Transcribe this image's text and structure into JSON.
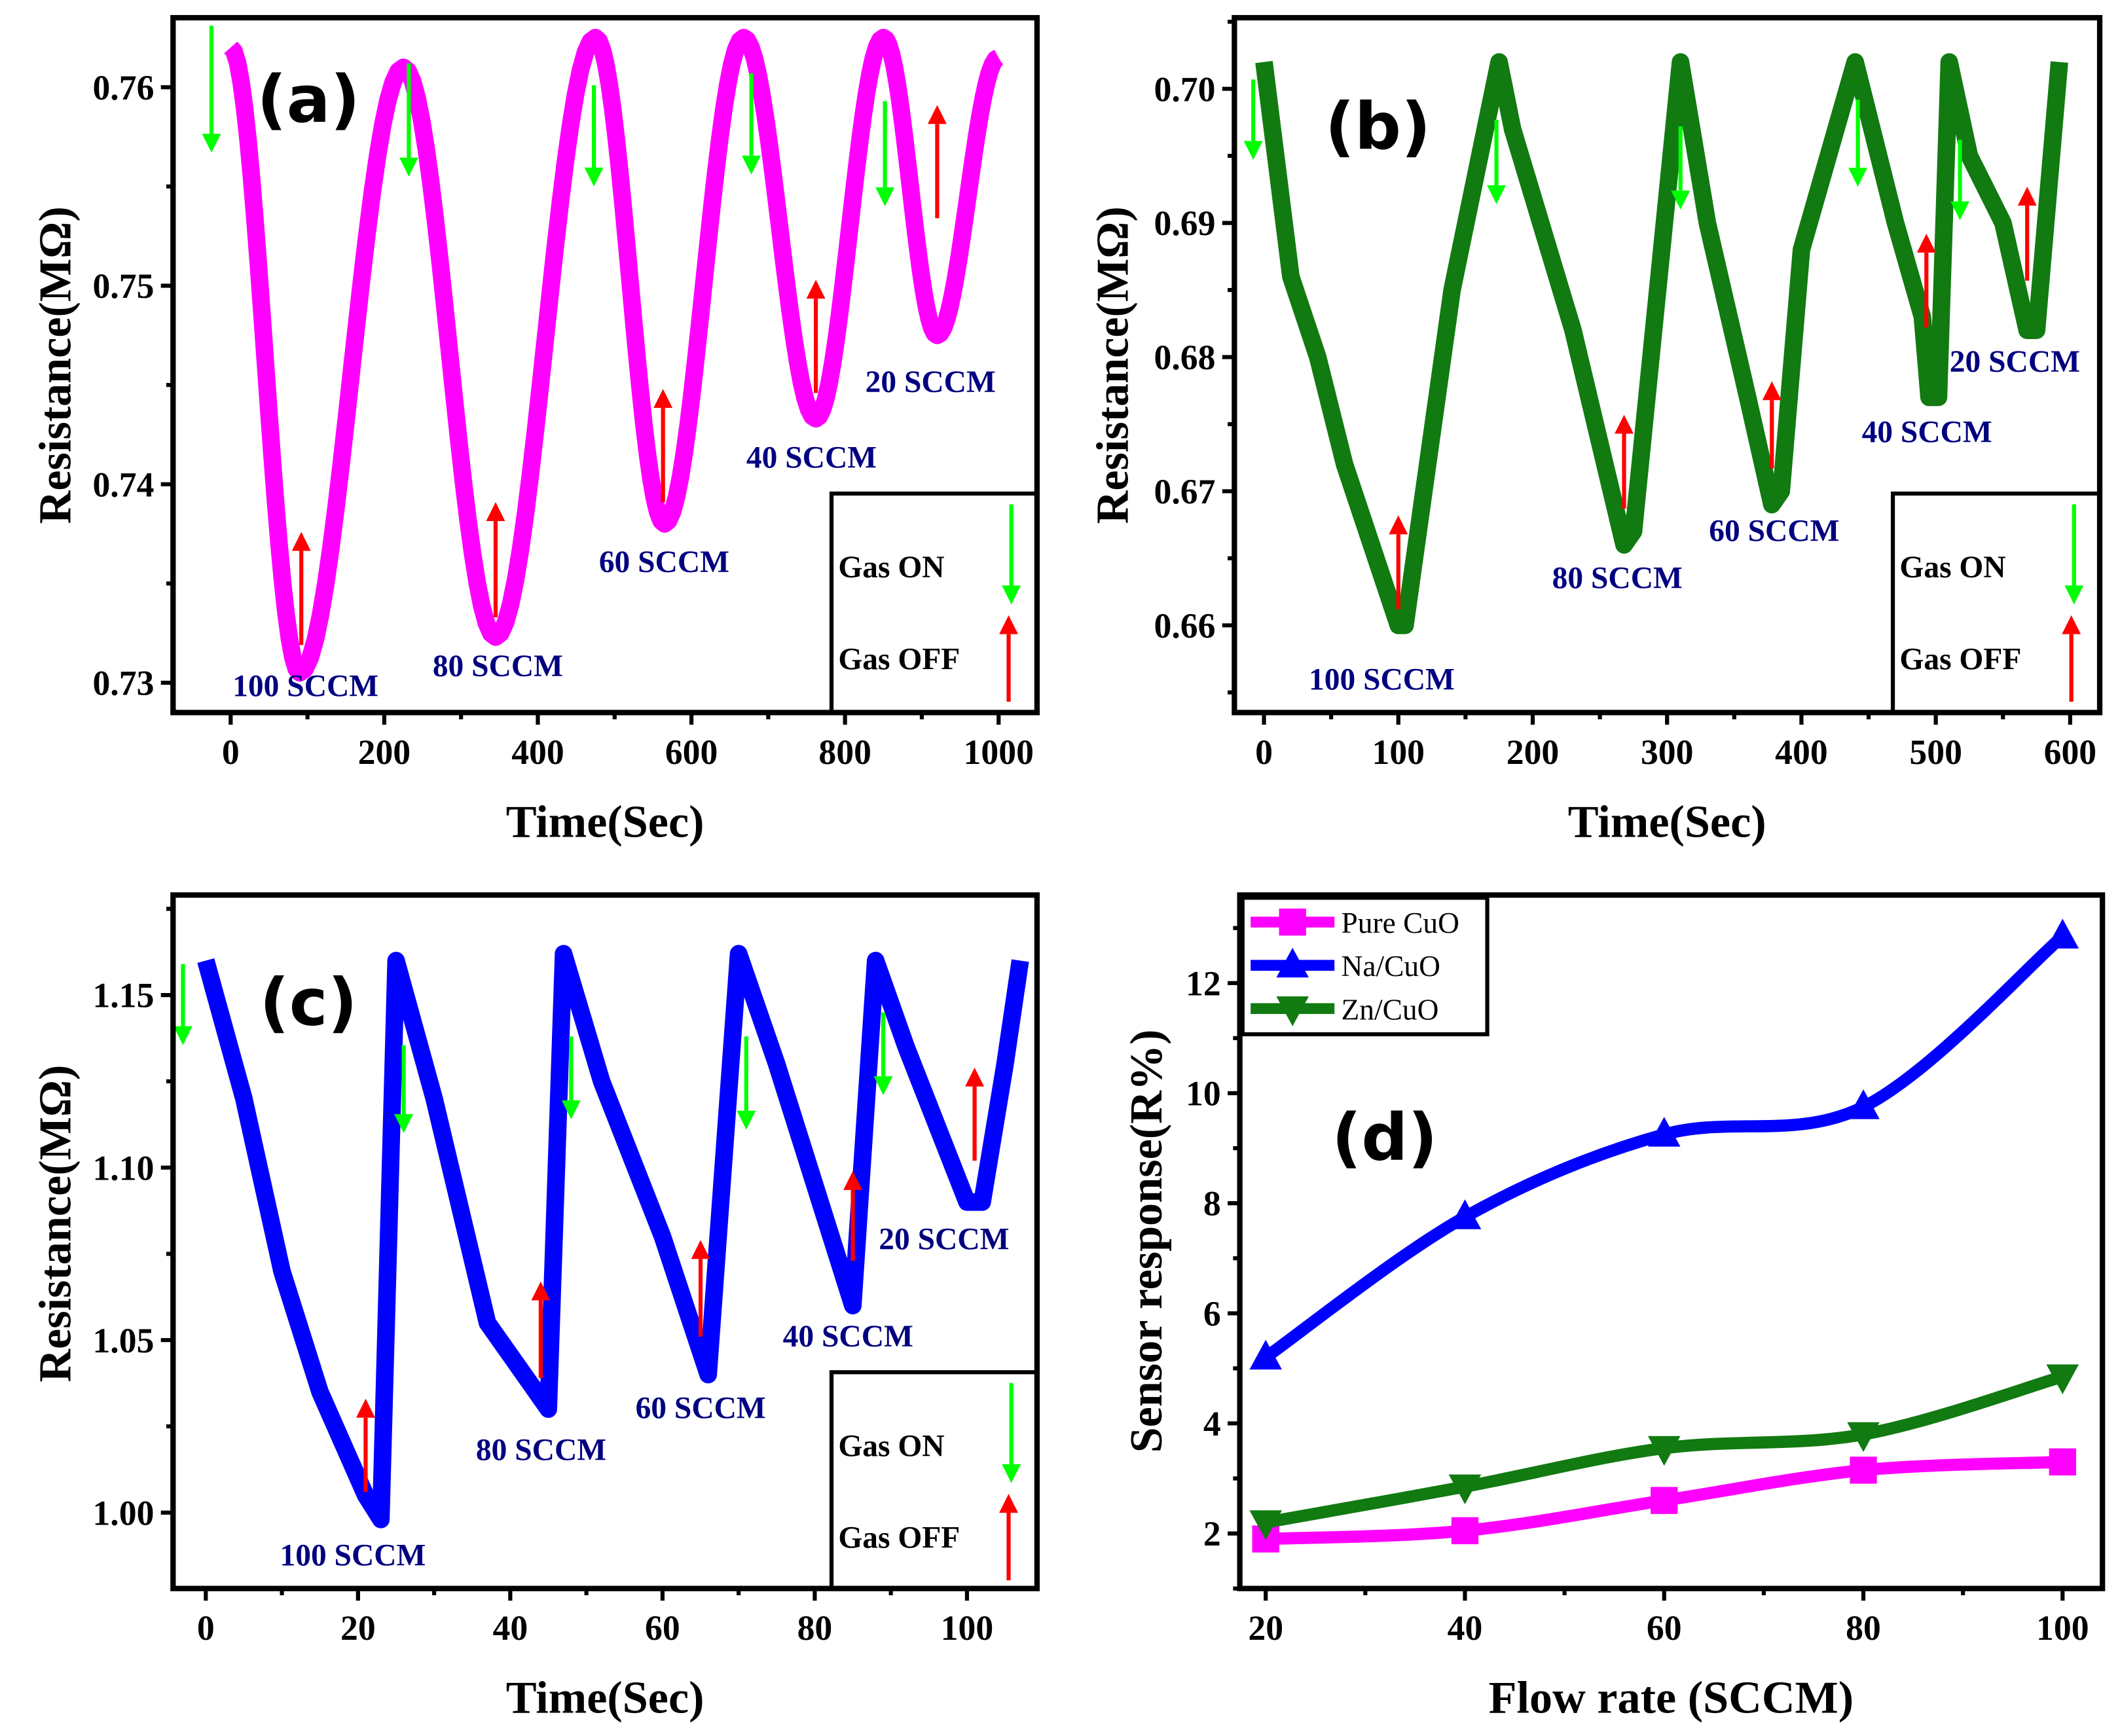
{
  "chart_data": [
    {
      "type": "line",
      "panel_label": "(a)",
      "xlabel": "Time(Sec)",
      "ylabel": "Resistance(MΩ)",
      "xlim": [
        -75,
        1050
      ],
      "ylim": [
        0.7285,
        0.7635
      ],
      "xticks": [
        0,
        200,
        400,
        600,
        800,
        1000
      ],
      "yticks": [
        0.73,
        0.74,
        0.75,
        0.76
      ],
      "ytick_labels": [
        "0.73",
        "0.74",
        "0.75",
        "0.76"
      ],
      "color": "#ff00ff",
      "curve": "cosine",
      "series": [
        {
          "name": "Pure CuO",
          "x": [
            0,
            90,
            225,
            345,
            475,
            565,
            668,
            762,
            850,
            920,
            1000
          ],
          "y": [
            0.762,
            0.7305,
            0.761,
            0.7323,
            0.7625,
            0.738,
            0.7625,
            0.7433,
            0.7625,
            0.7475,
            0.7615
          ]
        }
      ],
      "annotations": [
        "100 SCCM",
        "80 SCCM",
        "60 SCCM",
        "40 SCCM",
        "20 SCCM"
      ],
      "gas_on_arrows": [
        [
          -25,
          0.7631,
          0.7567
        ],
        [
          232,
          0.7612,
          0.7555
        ],
        [
          473,
          0.7601,
          0.755
        ],
        [
          678,
          0.7607,
          0.7556
        ],
        [
          852,
          0.7593,
          0.754
        ]
      ],
      "gas_off_arrows": [
        [
          92,
          0.7319,
          0.7376
        ],
        [
          345,
          0.7333,
          0.7391
        ],
        [
          563,
          0.7391,
          0.7448
        ],
        [
          762,
          0.7446,
          0.7503
        ],
        [
          920,
          0.7534,
          0.7591
        ]
      ],
      "legend": [
        "Gas ON",
        "Gas OFF"
      ]
    },
    {
      "type": "line",
      "panel_label": "(b)",
      "xlabel": "Time(Sec)",
      "ylabel": "Resistance(MΩ)",
      "xlim": [
        -22,
        622
      ],
      "ylim": [
        0.6535,
        0.7053
      ],
      "xticks": [
        0,
        100,
        200,
        300,
        400,
        500,
        600
      ],
      "yticks": [
        0.66,
        0.67,
        0.68,
        0.69,
        0.7
      ],
      "ytick_labels": [
        "0.66",
        "0.67",
        "0.68",
        "0.69",
        "0.70"
      ],
      "color": "#117a11",
      "curve": "linear",
      "series": [
        {
          "name": "Zn/CuO",
          "x": [
            0,
            20,
            40,
            60,
            100,
            105,
            140,
            175,
            185,
            230,
            268,
            275,
            310,
            330,
            360,
            378,
            385,
            400,
            440,
            470,
            490,
            495,
            502,
            510,
            525,
            550,
            568,
            575,
            592
          ],
          "y": [
            0.702,
            0.686,
            0.68,
            0.672,
            0.66,
            0.66,
            0.685,
            0.702,
            0.697,
            0.682,
            0.666,
            0.667,
            0.702,
            0.69,
            0.677,
            0.669,
            0.67,
            0.688,
            0.702,
            0.69,
            0.683,
            0.677,
            0.677,
            0.702,
            0.695,
            0.69,
            0.682,
            0.682,
            0.702
          ]
        }
      ],
      "annotations": [
        "100 SCCM",
        "80 SCCM",
        "60 SCCM",
        "40 SCCM",
        "20 SCCM"
      ],
      "gas_on_arrows": [
        [
          -8,
          0.7007,
          0.6947
        ],
        [
          173,
          0.6977,
          0.6914
        ],
        [
          310,
          0.6972,
          0.691
        ],
        [
          442,
          0.6992,
          0.6927
        ],
        [
          518,
          0.6962,
          0.6902
        ]
      ],
      "gas_off_arrows": [
        [
          100,
          0.6612,
          0.6682
        ],
        [
          268,
          0.6687,
          0.6757
        ],
        [
          378,
          0.6717,
          0.6782
        ],
        [
          493,
          0.6822,
          0.6892
        ],
        [
          568,
          0.6857,
          0.6927
        ]
      ],
      "legend": [
        "Gas ON",
        "Gas OFF"
      ]
    },
    {
      "type": "line",
      "panel_label": "(c)",
      "xlabel": "Time(Sec)",
      "ylabel": "Resistance(MΩ)",
      "xlim": [
        -4.3,
        109.2
      ],
      "ylim": [
        0.978,
        1.179
      ],
      "xticks": [
        0,
        20,
        40,
        60,
        80,
        100
      ],
      "yticks": [
        1.0,
        1.05,
        1.1,
        1.15
      ],
      "ytick_labels": [
        "1.00",
        "1.05",
        "1.10",
        "1.15"
      ],
      "color": "#0000ff",
      "curve": "linear",
      "series": [
        {
          "name": "Na/CuO",
          "x": [
            0,
            5,
            10,
            15,
            21,
            23,
            25,
            30,
            37,
            45,
            47,
            52,
            60,
            66,
            70,
            75,
            85,
            88,
            92,
            100,
            102,
            105,
            107
          ],
          "y": [
            1.16,
            1.12,
            1.07,
            1.035,
            1.005,
            0.998,
            1.16,
            1.12,
            1.055,
            1.03,
            1.162,
            1.125,
            1.08,
            1.04,
            1.162,
            1.13,
            1.06,
            1.16,
            1.135,
            1.09,
            1.09,
            1.13,
            1.16
          ]
        }
      ],
      "annotations": [
        "100 SCCM",
        "80 SCCM",
        "60 SCCM",
        "40 SCCM",
        "20 SCCM"
      ],
      "gas_on_arrows": [
        [
          -3,
          1.159,
          1.1355
        ],
        [
          26,
          1.1355,
          1.11
        ],
        [
          48,
          1.138,
          1.114
        ],
        [
          71,
          1.138,
          1.111
        ],
        [
          89,
          1.145,
          1.121
        ]
      ],
      "gas_off_arrows": [
        [
          21,
          1.006,
          1.033
        ],
        [
          44,
          1.039,
          1.067
        ],
        [
          65,
          1.051,
          1.079
        ],
        [
          85,
          1.073,
          1.099
        ],
        [
          101,
          1.102,
          1.129
        ]
      ],
      "legend": [
        "Gas ON",
        "Gas OFF"
      ]
    },
    {
      "type": "line",
      "panel_label": "(d)",
      "xlabel": "Flow rate (SCCM)",
      "ylabel": "Sensor response(R%)",
      "xlim": [
        17.4,
        104
      ],
      "ylim": [
        1.0,
        13.6
      ],
      "xticks": [
        20,
        40,
        60,
        80,
        100
      ],
      "yticks": [
        2,
        4,
        6,
        8,
        10,
        12
      ],
      "ytick_labels": [
        "2",
        "4",
        "6",
        "8",
        "10",
        "12"
      ],
      "x": [
        20,
        40,
        60,
        80,
        100
      ],
      "series": [
        {
          "name": "Pure CuO",
          "values": [
            1.9,
            2.05,
            2.6,
            3.15,
            3.3
          ],
          "color": "#ff00ff",
          "marker": "square"
        },
        {
          "name": "Na/CuO",
          "values": [
            5.2,
            7.75,
            9.25,
            9.75,
            12.85
          ],
          "color": "#0000ff",
          "marker": "triangle-up"
        },
        {
          "name": "Zn/CuO",
          "values": [
            2.2,
            2.85,
            3.55,
            3.8,
            4.85
          ],
          "color": "#117a11",
          "marker": "triangle-down"
        }
      ],
      "legend_position": "top-left"
    }
  ]
}
